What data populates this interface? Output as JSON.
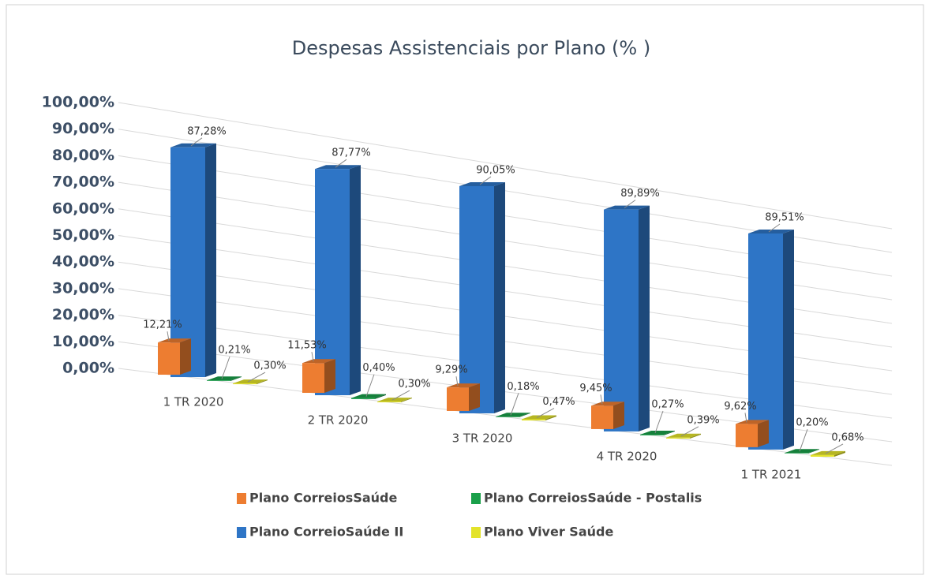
{
  "chart_data": {
    "type": "bar3d",
    "title": "Despesas Assistenciais  por Plano  (% )",
    "categories": [
      "1 TR 2020",
      "2 TR 2020",
      "3 TR 2020",
      "4 TR 2020",
      "1 TR 2021"
    ],
    "series": [
      {
        "name": "Plano CorreiosSaúde",
        "color": "#ed7d31",
        "values": [
          12.21,
          11.53,
          9.29,
          9.45,
          9.62
        ],
        "value_labels": [
          "12,21%",
          "11,53%",
          "9,29%",
          "9,45%",
          "9,62%"
        ]
      },
      {
        "name": "Plano CorreiosSaúde  - Postalis",
        "color": "#1aa04a",
        "values": [
          0.21,
          0.4,
          0.18,
          0.27,
          0.2
        ],
        "value_labels": [
          "0,21%",
          "0,40%",
          "0,18%",
          "0,27%",
          "0,20%"
        ]
      },
      {
        "name": "Plano CorreioSaúde II",
        "color": "#2e75c6",
        "values": [
          87.28,
          87.77,
          90.05,
          89.89,
          89.51
        ],
        "value_labels": [
          "87,28%",
          "87,77%",
          "90,05%",
          "89,89%",
          "89,51%"
        ]
      },
      {
        "name": "Plano Viver Saúde",
        "color": "#e3e32a",
        "values": [
          0.3,
          0.3,
          0.47,
          0.39,
          0.68
        ],
        "value_labels": [
          "0,30%",
          "0,30%",
          "0,47%",
          "0,39%",
          "0,68%"
        ]
      }
    ],
    "ylim": [
      0,
      100
    ],
    "yticks": [
      {
        "value": 0,
        "label": "0,00%"
      },
      {
        "value": 10,
        "label": "10,00%"
      },
      {
        "value": 20,
        "label": "20,00%"
      },
      {
        "value": 30,
        "label": "30,00%"
      },
      {
        "value": 40,
        "label": "40,00%"
      },
      {
        "value": 50,
        "label": "50,00%"
      },
      {
        "value": 60,
        "label": "60,00%"
      },
      {
        "value": 70,
        "label": "70,00%"
      },
      {
        "value": 80,
        "label": "80,00%"
      },
      {
        "value": 90,
        "label": "90,00%"
      },
      {
        "value": 100,
        "label": "100,00%"
      }
    ],
    "grid": true
  }
}
